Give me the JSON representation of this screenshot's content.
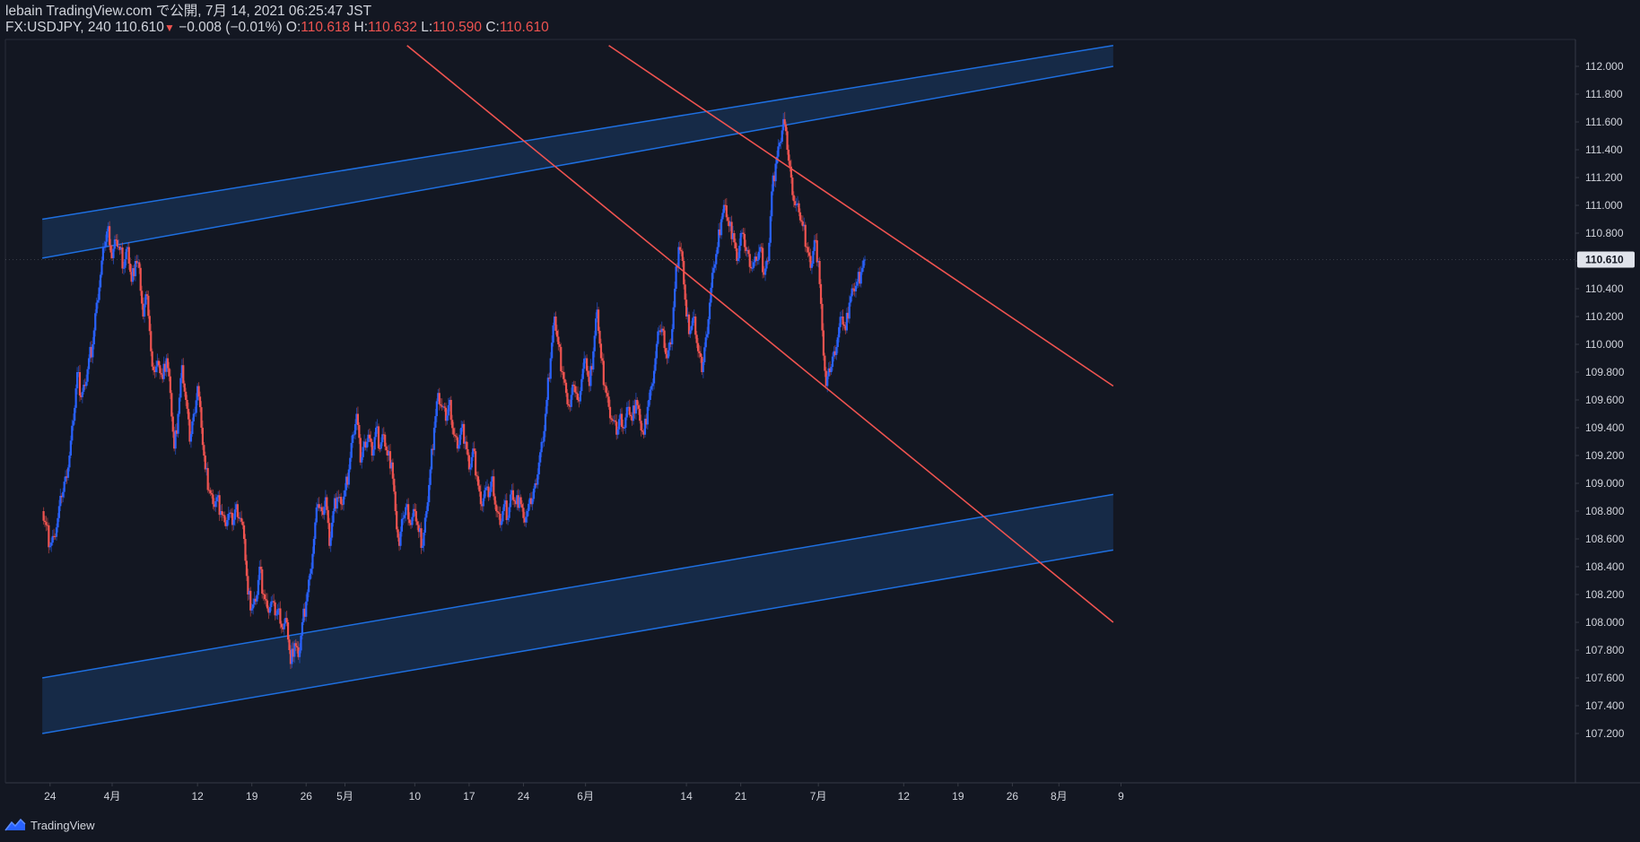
{
  "header": {
    "line1": "lebain TradingView.com で公開, 7月 14, 2021 06:25:47 JST",
    "symbol": "FX:USDJPY, 240 110.610",
    "arrow": "▼",
    "change": "−0.008 (−0.01%)",
    "o_label": " O:",
    "o_value": "110.618",
    "h_label": " H:",
    "h_value": "110.632",
    "l_label": " L:",
    "l_value": "110.590",
    "c_label": " C:",
    "c_value": "110.610"
  },
  "footer": {
    "brand": "TradingView"
  },
  "colors": {
    "background": "#131722",
    "up": "#2962ff",
    "down": "#ef5350",
    "channel_line": "#1e6fe0",
    "channel_fill": "#1a3a66",
    "trend_line": "#ef5350",
    "price_badge": "#e0e3eb"
  },
  "chart_data": {
    "type": "candlestick",
    "symbol": "FX:USDJPY",
    "interval": "240",
    "last_price": "110.610",
    "ylim": [
      107.04,
      112.15
    ],
    "y_ticks": [
      "112.000",
      "111.800",
      "111.600",
      "111.400",
      "111.200",
      "111.000",
      "110.800",
      "110.600",
      "110.400",
      "110.200",
      "110.000",
      "109.800",
      "109.600",
      "109.400",
      "109.200",
      "109.000",
      "108.800",
      "108.600",
      "108.400",
      "108.200",
      "108.000",
      "107.800",
      "107.600",
      "107.400",
      "107.200"
    ],
    "x_ticks": [
      {
        "label": "24",
        "day": -8
      },
      {
        "label": "4月",
        "day": 0
      },
      {
        "label": "12",
        "day": 11
      },
      {
        "label": "19",
        "day": 18
      },
      {
        "label": "26",
        "day": 25
      },
      {
        "label": "5月",
        "day": 30
      },
      {
        "label": "10",
        "day": 39
      },
      {
        "label": "17",
        "day": 46
      },
      {
        "label": "24",
        "day": 53
      },
      {
        "label": "6月",
        "day": 61
      },
      {
        "label": "14",
        "day": 74
      },
      {
        "label": "21",
        "day": 81
      },
      {
        "label": "7月",
        "day": 91
      },
      {
        "label": "12",
        "day": 102
      },
      {
        "label": "19",
        "day": 109
      },
      {
        "label": "26",
        "day": 116
      },
      {
        "label": "8月",
        "day": 122
      },
      {
        "label": "9",
        "day": 130
      }
    ],
    "closes": [
      {
        "day": -9.0,
        "c": 108.8
      },
      {
        "day": -8.5,
        "c": 108.7
      },
      {
        "day": -8.0,
        "c": 108.55
      },
      {
        "day": -7.5,
        "c": 108.62
      },
      {
        "day": -7.0,
        "c": 108.75
      },
      {
        "day": -6.5,
        "c": 108.9
      },
      {
        "day": -6.0,
        "c": 109.05
      },
      {
        "day": -5.5,
        "c": 109.2
      },
      {
        "day": -5.0,
        "c": 109.45
      },
      {
        "day": -4.5,
        "c": 109.8
      },
      {
        "day": -4.0,
        "c": 109.62
      },
      {
        "day": -3.5,
        "c": 109.7
      },
      {
        "day": -3.0,
        "c": 109.9
      },
      {
        "day": -2.5,
        "c": 110.0
      },
      {
        "day": -2.0,
        "c": 110.3
      },
      {
        "day": -1.5,
        "c": 110.5
      },
      {
        "day": -1.0,
        "c": 110.7
      },
      {
        "day": -0.5,
        "c": 110.85
      },
      {
        "day": 0.0,
        "c": 110.62
      },
      {
        "day": 0.5,
        "c": 110.75
      },
      {
        "day": 1.0,
        "c": 110.68
      },
      {
        "day": 1.5,
        "c": 110.55
      },
      {
        "day": 2.0,
        "c": 110.7
      },
      {
        "day": 2.5,
        "c": 110.45
      },
      {
        "day": 3.0,
        "c": 110.6
      },
      {
        "day": 3.5,
        "c": 110.55
      },
      {
        "day": 4.0,
        "c": 110.2
      },
      {
        "day": 4.5,
        "c": 110.35
      },
      {
        "day": 5.0,
        "c": 109.95
      },
      {
        "day": 5.5,
        "c": 109.8
      },
      {
        "day": 6.0,
        "c": 109.85
      },
      {
        "day": 6.5,
        "c": 109.75
      },
      {
        "day": 7.0,
        "c": 109.9
      },
      {
        "day": 7.5,
        "c": 109.65
      },
      {
        "day": 8.0,
        "c": 109.25
      },
      {
        "day": 8.5,
        "c": 109.5
      },
      {
        "day": 9.0,
        "c": 109.85
      },
      {
        "day": 9.5,
        "c": 109.6
      },
      {
        "day": 10.0,
        "c": 109.3
      },
      {
        "day": 10.5,
        "c": 109.5
      },
      {
        "day": 11.0,
        "c": 109.7
      },
      {
        "day": 11.5,
        "c": 109.4
      },
      {
        "day": 12.0,
        "c": 109.1
      },
      {
        "day": 12.5,
        "c": 108.95
      },
      {
        "day": 13.0,
        "c": 108.85
      },
      {
        "day": 13.5,
        "c": 108.9
      },
      {
        "day": 14.0,
        "c": 108.8
      },
      {
        "day": 14.5,
        "c": 108.72
      },
      {
        "day": 15.0,
        "c": 108.78
      },
      {
        "day": 15.5,
        "c": 108.7
      },
      {
        "day": 16.0,
        "c": 108.85
      },
      {
        "day": 16.5,
        "c": 108.75
      },
      {
        "day": 17.0,
        "c": 108.6
      },
      {
        "day": 17.5,
        "c": 108.2
      },
      {
        "day": 18.0,
        "c": 108.1
      },
      {
        "day": 18.5,
        "c": 108.15
      },
      {
        "day": 19.0,
        "c": 108.4
      },
      {
        "day": 19.5,
        "c": 108.2
      },
      {
        "day": 20.0,
        "c": 108.1
      },
      {
        "day": 20.5,
        "c": 108.15
      },
      {
        "day": 21.0,
        "c": 108.05
      },
      {
        "day": 21.5,
        "c": 108.1
      },
      {
        "day": 22.0,
        "c": 107.95
      },
      {
        "day": 22.5,
        "c": 108.0
      },
      {
        "day": 23.0,
        "c": 107.7
      },
      {
        "day": 23.5,
        "c": 107.85
      },
      {
        "day": 24.0,
        "c": 107.75
      },
      {
        "day": 24.5,
        "c": 108.0
      },
      {
        "day": 25.0,
        "c": 108.15
      },
      {
        "day": 25.5,
        "c": 108.35
      },
      {
        "day": 26.0,
        "c": 108.6
      },
      {
        "day": 26.5,
        "c": 108.85
      },
      {
        "day": 27.0,
        "c": 108.8
      },
      {
        "day": 27.5,
        "c": 108.9
      },
      {
        "day": 28.0,
        "c": 108.55
      },
      {
        "day": 28.5,
        "c": 108.8
      },
      {
        "day": 29.0,
        "c": 108.9
      },
      {
        "day": 29.5,
        "c": 108.85
      },
      {
        "day": 30.0,
        "c": 108.95
      },
      {
        "day": 30.5,
        "c": 109.1
      },
      {
        "day": 31.0,
        "c": 109.35
      },
      {
        "day": 31.5,
        "c": 109.5
      },
      {
        "day": 32.0,
        "c": 109.15
      },
      {
        "day": 32.5,
        "c": 109.3
      },
      {
        "day": 33.0,
        "c": 109.35
      },
      {
        "day": 33.5,
        "c": 109.2
      },
      {
        "day": 34.0,
        "c": 109.4
      },
      {
        "day": 34.5,
        "c": 109.25
      },
      {
        "day": 35.0,
        "c": 109.35
      },
      {
        "day": 35.5,
        "c": 109.2
      },
      {
        "day": 36.0,
        "c": 109.15
      },
      {
        "day": 36.5,
        "c": 108.8
      },
      {
        "day": 37.0,
        "c": 108.55
      },
      {
        "day": 37.5,
        "c": 108.75
      },
      {
        "day": 38.0,
        "c": 108.85
      },
      {
        "day": 38.5,
        "c": 108.7
      },
      {
        "day": 39.0,
        "c": 108.8
      },
      {
        "day": 39.5,
        "c": 108.65
      },
      {
        "day": 40.0,
        "c": 108.55
      },
      {
        "day": 40.5,
        "c": 108.8
      },
      {
        "day": 41.0,
        "c": 109.1
      },
      {
        "day": 41.5,
        "c": 109.4
      },
      {
        "day": 42.0,
        "c": 109.65
      },
      {
        "day": 42.5,
        "c": 109.55
      },
      {
        "day": 43.0,
        "c": 109.45
      },
      {
        "day": 43.5,
        "c": 109.6
      },
      {
        "day": 44.0,
        "c": 109.35
      },
      {
        "day": 44.5,
        "c": 109.25
      },
      {
        "day": 45.0,
        "c": 109.4
      },
      {
        "day": 45.5,
        "c": 109.3
      },
      {
        "day": 46.0,
        "c": 109.1
      },
      {
        "day": 46.5,
        "c": 109.25
      },
      {
        "day": 47.0,
        "c": 109.05
      },
      {
        "day": 47.5,
        "c": 108.85
      },
      {
        "day": 48.0,
        "c": 108.95
      },
      {
        "day": 48.5,
        "c": 108.9
      },
      {
        "day": 49.0,
        "c": 109.05
      },
      {
        "day": 49.5,
        "c": 108.8
      },
      {
        "day": 50.0,
        "c": 108.7
      },
      {
        "day": 50.5,
        "c": 108.85
      },
      {
        "day": 51.0,
        "c": 108.75
      },
      {
        "day": 51.5,
        "c": 108.95
      },
      {
        "day": 52.0,
        "c": 108.85
      },
      {
        "day": 52.5,
        "c": 108.9
      },
      {
        "day": 53.0,
        "c": 108.75
      },
      {
        "day": 53.5,
        "c": 108.8
      },
      {
        "day": 54.0,
        "c": 108.85
      },
      {
        "day": 54.5,
        "c": 109.0
      },
      {
        "day": 55.0,
        "c": 109.15
      },
      {
        "day": 55.5,
        "c": 109.3
      },
      {
        "day": 56.0,
        "c": 109.6
      },
      {
        "day": 56.5,
        "c": 109.9
      },
      {
        "day": 57.0,
        "c": 110.2
      },
      {
        "day": 57.5,
        "c": 110.0
      },
      {
        "day": 58.0,
        "c": 109.8
      },
      {
        "day": 58.5,
        "c": 109.65
      },
      {
        "day": 59.0,
        "c": 109.55
      },
      {
        "day": 59.5,
        "c": 109.7
      },
      {
        "day": 60.0,
        "c": 109.6
      },
      {
        "day": 60.5,
        "c": 109.75
      },
      {
        "day": 61.0,
        "c": 109.9
      },
      {
        "day": 61.5,
        "c": 109.7
      },
      {
        "day": 62.0,
        "c": 109.95
      },
      {
        "day": 62.5,
        "c": 110.25
      },
      {
        "day": 63.0,
        "c": 109.9
      },
      {
        "day": 63.5,
        "c": 109.7
      },
      {
        "day": 64.0,
        "c": 109.55
      },
      {
        "day": 64.5,
        "c": 109.45
      },
      {
        "day": 65.0,
        "c": 109.35
      },
      {
        "day": 65.5,
        "c": 109.5
      },
      {
        "day": 66.0,
        "c": 109.4
      },
      {
        "day": 66.5,
        "c": 109.55
      },
      {
        "day": 67.0,
        "c": 109.45
      },
      {
        "day": 67.5,
        "c": 109.6
      },
      {
        "day": 68.0,
        "c": 109.45
      },
      {
        "day": 68.5,
        "c": 109.35
      },
      {
        "day": 69.0,
        "c": 109.55
      },
      {
        "day": 69.5,
        "c": 109.7
      },
      {
        "day": 70.0,
        "c": 109.9
      },
      {
        "day": 70.5,
        "c": 110.1
      },
      {
        "day": 71.0,
        "c": 110.1
      },
      {
        "day": 71.5,
        "c": 109.9
      },
      {
        "day": 72.0,
        "c": 110.0
      },
      {
        "day": 72.5,
        "c": 110.4
      },
      {
        "day": 73.0,
        "c": 110.7
      },
      {
        "day": 73.5,
        "c": 110.6
      },
      {
        "day": 74.0,
        "c": 110.2
      },
      {
        "day": 74.5,
        "c": 110.1
      },
      {
        "day": 75.0,
        "c": 110.2
      },
      {
        "day": 75.5,
        "c": 109.95
      },
      {
        "day": 76.0,
        "c": 109.8
      },
      {
        "day": 76.5,
        "c": 110.05
      },
      {
        "day": 77.0,
        "c": 110.3
      },
      {
        "day": 77.5,
        "c": 110.55
      },
      {
        "day": 78.0,
        "c": 110.7
      },
      {
        "day": 78.5,
        "c": 110.9
      },
      {
        "day": 79.0,
        "c": 111.0
      },
      {
        "day": 79.5,
        "c": 110.85
      },
      {
        "day": 80.0,
        "c": 110.8
      },
      {
        "day": 80.5,
        "c": 110.6
      },
      {
        "day": 81.0,
        "c": 110.8
      },
      {
        "day": 81.5,
        "c": 110.7
      },
      {
        "day": 82.0,
        "c": 110.65
      },
      {
        "day": 82.5,
        "c": 110.55
      },
      {
        "day": 83.0,
        "c": 110.6
      },
      {
        "day": 83.5,
        "c": 110.7
      },
      {
        "day": 84.0,
        "c": 110.5
      },
      {
        "day": 84.5,
        "c": 110.6
      },
      {
        "day": 85.0,
        "c": 111.1
      },
      {
        "day": 85.5,
        "c": 111.3
      },
      {
        "day": 86.0,
        "c": 111.45
      },
      {
        "day": 86.5,
        "c": 111.62
      },
      {
        "day": 87.0,
        "c": 111.4
      },
      {
        "day": 87.5,
        "c": 111.2
      },
      {
        "day": 88.0,
        "c": 111.0
      },
      {
        "day": 88.5,
        "c": 110.95
      },
      {
        "day": 89.0,
        "c": 110.85
      },
      {
        "day": 89.5,
        "c": 110.7
      },
      {
        "day": 90.0,
        "c": 110.55
      },
      {
        "day": 90.5,
        "c": 110.75
      },
      {
        "day": 91.0,
        "c": 110.6
      },
      {
        "day": 91.5,
        "c": 110.1
      },
      {
        "day": 92.0,
        "c": 109.7
      },
      {
        "day": 92.5,
        "c": 109.8
      },
      {
        "day": 93.0,
        "c": 109.95
      },
      {
        "day": 93.5,
        "c": 110.05
      },
      {
        "day": 94.0,
        "c": 110.2
      },
      {
        "day": 94.5,
        "c": 110.1
      },
      {
        "day": 95.0,
        "c": 110.3
      },
      {
        "day": 95.5,
        "c": 110.4
      },
      {
        "day": 96.0,
        "c": 110.45
      },
      {
        "day": 96.5,
        "c": 110.52
      },
      {
        "day": 97.0,
        "c": 110.61
      }
    ],
    "channel_upper_band": {
      "top": [
        [
          -9,
          110.9
        ],
        [
          129,
          112.15
        ]
      ],
      "bottom": [
        [
          -9,
          110.62
        ],
        [
          129,
          112.0
        ]
      ]
    },
    "channel_lower_band": {
      "top": [
        [
          -9,
          107.6
        ],
        [
          129,
          108.92
        ]
      ],
      "bottom": [
        [
          -9,
          107.2
        ],
        [
          129,
          108.52
        ]
      ]
    },
    "downtrend_lines": [
      [
        [
          38,
          112.15
        ],
        [
          129,
          108.0
        ]
      ],
      [
        [
          64,
          112.15
        ],
        [
          129,
          109.7
        ]
      ]
    ]
  }
}
